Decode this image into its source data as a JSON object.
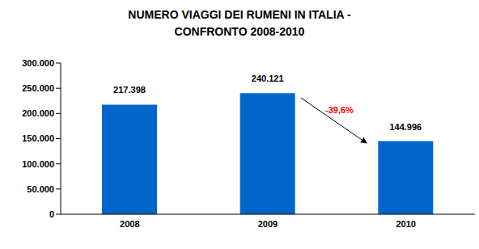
{
  "chart_data": {
    "type": "bar",
    "title": "NUMERO VIAGGI DEI RUMENI IN ITALIA -",
    "subtitle": "CONFRONTO 2008-2010",
    "categories": [
      "2008",
      "2009",
      "2010"
    ],
    "values": [
      217398,
      240121,
      144996
    ],
    "value_labels": [
      "217.398",
      "240.121",
      "144.996"
    ],
    "data_labels": true,
    "color": "#0066cc",
    "ylim": [
      0,
      300000
    ],
    "yticks": [
      0,
      {
        "value": 50000,
        "label": "50.000"
      },
      {
        "value": 100000,
        "label": "100.000"
      },
      {
        "value": 150000,
        "label": "150.000"
      },
      {
        "value": 200000,
        "label": "200.000"
      },
      {
        "value": 250000,
        "label": "250.000"
      },
      {
        "value": 300000,
        "label": "300.000"
      }
    ],
    "grid": false,
    "annotation": "-39,6%"
  }
}
